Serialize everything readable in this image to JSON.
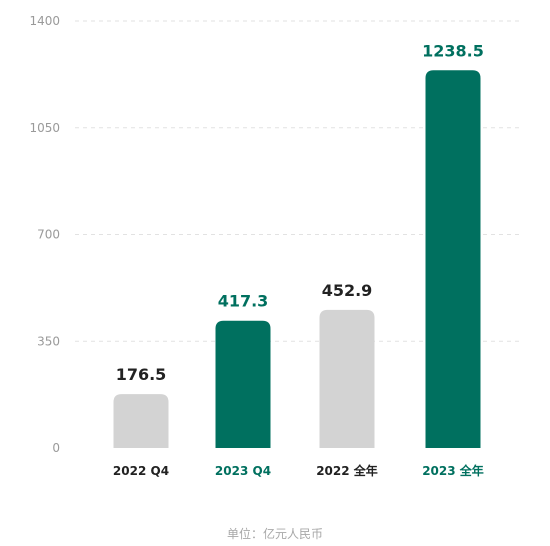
{
  "chart_data": {
    "type": "bar",
    "categories": [
      "2022 Q4",
      "2023 Q4",
      "2022 全年",
      "2023 全年"
    ],
    "values": [
      176.5,
      417.3,
      452.9,
      1238.5
    ],
    "value_labels": [
      "176.5",
      "417.3",
      "452.9",
      "1238.5"
    ],
    "ylim": [
      0,
      1400
    ],
    "yticks": [
      0,
      350,
      700,
      1050,
      1400
    ],
    "grid": true,
    "colors": {
      "highlight": "#00705f",
      "muted": "#d3d3d3",
      "muted_label": "#222222",
      "tick": "#9a9a9a"
    },
    "bar_highlight": [
      false,
      true,
      false,
      true
    ],
    "title": "",
    "xlabel": "",
    "ylabel": ""
  },
  "footer": {
    "unit": "单位：亿元人民币"
  }
}
